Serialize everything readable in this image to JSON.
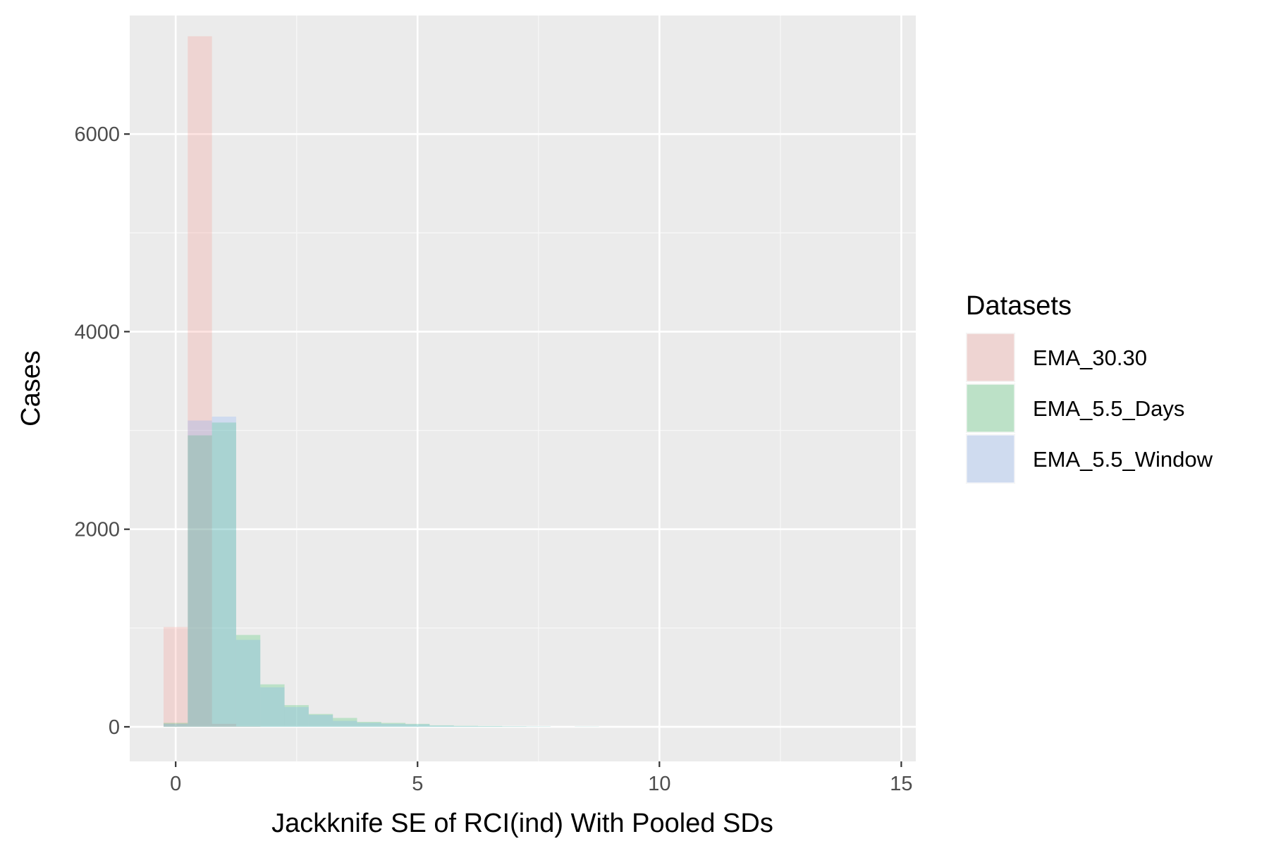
{
  "chart_data": {
    "type": "bar",
    "title": "",
    "xlabel": "Jackknife SE of RCI(ind) With Pooled SDs",
    "ylabel": "Cases",
    "xlim": [
      -0.95,
      15.3
    ],
    "ylim": [
      -350,
      7200
    ],
    "x_ticks": [
      0,
      5,
      10,
      15
    ],
    "y_ticks": [
      0,
      2000,
      4000,
      6000
    ],
    "x_ticks_text": [
      "0",
      "5",
      "10",
      "15"
    ],
    "y_ticks_text": [
      "0",
      "2000",
      "4000",
      "6000"
    ],
    "grid": true,
    "bin_width": 0.5,
    "legend": {
      "title": "Datasets",
      "placement": "right"
    },
    "series": [
      {
        "name": "EMA_30.30",
        "color": "#F8766D",
        "bin_starts": [
          -0.25,
          0.25,
          0.75,
          1.25
        ],
        "values": [
          1010,
          6990,
          30,
          5
        ]
      },
      {
        "name": "EMA_5.5_Days",
        "color": "#00BA38",
        "bin_starts": [
          -0.25,
          0.25,
          0.75,
          1.25,
          1.75,
          2.25,
          2.75,
          3.25,
          3.75,
          4.25,
          4.75,
          5.25,
          5.75,
          6.25,
          6.75,
          7.25,
          8.25
        ],
        "values": [
          40,
          2950,
          3080,
          930,
          430,
          220,
          130,
          90,
          50,
          40,
          30,
          15,
          10,
          8,
          5,
          3,
          2
        ]
      },
      {
        "name": "EMA_5.5_Window",
        "color": "#619CFF",
        "bin_starts": [
          -0.25,
          0.25,
          0.75,
          1.25,
          1.75,
          2.25,
          2.75,
          3.25,
          3.75,
          4.25,
          4.75,
          5.25,
          5.75,
          6.25,
          6.75,
          7.25,
          8.25
        ],
        "values": [
          30,
          3100,
          3140,
          880,
          400,
          200,
          120,
          60,
          40,
          30,
          25,
          12,
          8,
          6,
          4,
          3,
          2
        ]
      }
    ]
  }
}
